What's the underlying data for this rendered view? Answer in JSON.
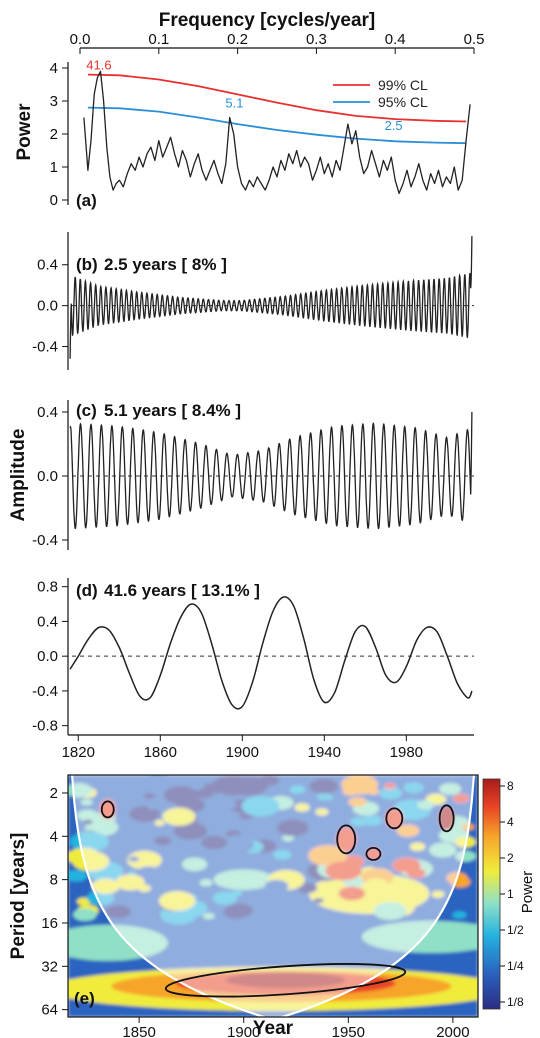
{
  "figure": {
    "top_axis_label": "Frequency [cycles/year]",
    "bottom_axis_label": "Year",
    "amplitude_label": "Amplitude"
  },
  "chart_data": [
    {
      "id": "a",
      "type": "line",
      "panel_label": "(a)",
      "ylabel": "Power",
      "xlabel": "Frequency [cycles/year]",
      "xlim": [
        0,
        0.5
      ],
      "ylim": [
        0,
        4.4
      ],
      "x_ticks": [
        "0.0",
        "0.1",
        "0.2",
        "0.3",
        "0.4",
        "0.5"
      ],
      "y_ticks": [
        "0",
        "1",
        "2",
        "3",
        "4"
      ],
      "legend_position": "top-right",
      "series": [
        {
          "name": "99% CL",
          "color": "#e8312f",
          "x": [
            0.01,
            0.05,
            0.1,
            0.15,
            0.2,
            0.25,
            0.3,
            0.35,
            0.4,
            0.45,
            0.49
          ],
          "y": [
            3.8,
            3.78,
            3.65,
            3.45,
            3.2,
            2.95,
            2.72,
            2.55,
            2.45,
            2.4,
            2.38
          ]
        },
        {
          "name": "95% CL",
          "color": "#2a8fd6",
          "x": [
            0.01,
            0.05,
            0.1,
            0.15,
            0.2,
            0.25,
            0.3,
            0.35,
            0.4,
            0.45,
            0.49
          ],
          "y": [
            2.8,
            2.78,
            2.68,
            2.5,
            2.3,
            2.12,
            1.98,
            1.86,
            1.78,
            1.74,
            1.72
          ]
        },
        {
          "name": "",
          "color": "#222222",
          "x": [
            0.005,
            0.01,
            0.014,
            0.018,
            0.022,
            0.026,
            0.03,
            0.034,
            0.038,
            0.042,
            0.046,
            0.05,
            0.055,
            0.06,
            0.065,
            0.07,
            0.075,
            0.08,
            0.085,
            0.09,
            0.095,
            0.1,
            0.105,
            0.11,
            0.115,
            0.12,
            0.125,
            0.13,
            0.135,
            0.14,
            0.145,
            0.15,
            0.155,
            0.16,
            0.165,
            0.17,
            0.175,
            0.18,
            0.185,
            0.19,
            0.195,
            0.2,
            0.205,
            0.21,
            0.215,
            0.22,
            0.225,
            0.23,
            0.235,
            0.24,
            0.245,
            0.25,
            0.255,
            0.26,
            0.265,
            0.27,
            0.275,
            0.28,
            0.285,
            0.29,
            0.295,
            0.3,
            0.305,
            0.31,
            0.315,
            0.32,
            0.325,
            0.33,
            0.335,
            0.34,
            0.345,
            0.35,
            0.355,
            0.36,
            0.365,
            0.37,
            0.375,
            0.38,
            0.385,
            0.39,
            0.395,
            0.4,
            0.405,
            0.41,
            0.415,
            0.42,
            0.425,
            0.43,
            0.435,
            0.44,
            0.445,
            0.45,
            0.455,
            0.46,
            0.465,
            0.47,
            0.475,
            0.48,
            0.485,
            0.49,
            0.495
          ],
          "y": [
            2.5,
            0.9,
            1.8,
            3.2,
            3.7,
            3.9,
            3.0,
            1.6,
            0.7,
            0.3,
            0.5,
            0.6,
            0.4,
            0.8,
            1.1,
            0.9,
            1.3,
            1.0,
            1.4,
            1.6,
            1.2,
            1.8,
            1.3,
            1.6,
            1.9,
            1.4,
            1.0,
            1.5,
            1.2,
            0.7,
            1.1,
            1.4,
            0.9,
            0.6,
            0.9,
            1.2,
            0.8,
            0.5,
            1.1,
            2.5,
            2.0,
            1.0,
            0.5,
            0.3,
            0.6,
            0.4,
            0.7,
            0.5,
            0.3,
            0.6,
            1.0,
            0.7,
            1.2,
            0.9,
            1.4,
            1.1,
            1.5,
            1.0,
            1.3,
            1.1,
            0.6,
            0.9,
            1.3,
            0.8,
            1.1,
            0.7,
            1.2,
            0.9,
            1.6,
            2.3,
            1.7,
            2.1,
            1.3,
            0.8,
            1.0,
            1.5,
            1.1,
            0.7,
            1.2,
            0.9,
            1.3,
            0.6,
            0.2,
            0.5,
            0.9,
            0.4,
            0.7,
            1.1,
            0.6,
            0.3,
            0.8,
            0.5,
            0.9,
            0.4,
            0.7,
            0.5,
            1.0,
            0.3,
            0.6,
            1.8,
            2.9
          ]
        }
      ],
      "annotations": [
        {
          "text": "41.6",
          "x": 0.024,
          "y": 3.95,
          "color": "#e8312f"
        },
        {
          "text": "5.1",
          "x": 0.196,
          "y": 2.8,
          "color": "#2a8fd6"
        },
        {
          "text": "2.5",
          "x": 0.398,
          "y": 2.12,
          "color": "#2a8fd6"
        }
      ],
      "legend": [
        "99% CL",
        "95% CL"
      ]
    },
    {
      "id": "b",
      "type": "line",
      "panel_label": "(b)",
      "title": "2.5 years [ 8% ]",
      "xlim": [
        1815,
        2013
      ],
      "ylim": [
        -0.6,
        0.72
      ],
      "y_ticks": [
        "0.4",
        "0.0",
        "-0.4"
      ],
      "period_years": 2.5,
      "zero_line": "dashed",
      "envelope_year": [
        1816,
        1830,
        1850,
        1870,
        1890,
        1900,
        1920,
        1940,
        1960,
        1980,
        2000,
        2012
      ],
      "envelope_amp": [
        0.3,
        0.19,
        0.13,
        0.08,
        0.05,
        0.05,
        0.09,
        0.15,
        0.2,
        0.24,
        0.27,
        0.32
      ],
      "end_values": {
        "start": -0.52,
        "end": 0.68
      }
    },
    {
      "id": "c",
      "type": "line",
      "panel_label": "(c)",
      "title": "5.1 years [ 8.4% ]",
      "xlim": [
        1815,
        2013
      ],
      "ylim": [
        -0.45,
        0.45
      ],
      "y_ticks": [
        "0.4",
        "0.0",
        "-0.4"
      ],
      "period_years": 5.1,
      "zero_line": "dashed",
      "envelope_year": [
        1816,
        1840,
        1860,
        1880,
        1895,
        1910,
        1925,
        1945,
        1965,
        1985,
        2000,
        2012
      ],
      "envelope_amp": [
        0.33,
        0.31,
        0.27,
        0.2,
        0.13,
        0.16,
        0.24,
        0.31,
        0.33,
        0.3,
        0.24,
        0.3
      ],
      "end_values": {
        "start": 0.3,
        "end": 0.4
      }
    },
    {
      "id": "d",
      "type": "line",
      "panel_label": "(d)",
      "title": "41.6 years [ 13.1% ]",
      "xlim": [
        1815,
        2013
      ],
      "ylim": [
        -0.85,
        0.9
      ],
      "y_ticks": [
        "0.8",
        "0.4",
        "0.0",
        "-0.4",
        "-0.8"
      ],
      "x_ticks": [
        "1820",
        "1860",
        "1900",
        "1940",
        "1980"
      ],
      "zero_line": "dashed",
      "x": [
        1816,
        1820,
        1825,
        1830,
        1835,
        1840,
        1845,
        1850,
        1855,
        1860,
        1865,
        1870,
        1875,
        1880,
        1885,
        1890,
        1895,
        1900,
        1905,
        1910,
        1915,
        1920,
        1925,
        1930,
        1935,
        1940,
        1945,
        1950,
        1955,
        1960,
        1965,
        1970,
        1975,
        1980,
        1985,
        1990,
        1995,
        2000,
        2005,
        2010,
        2012
      ],
      "y": [
        -0.15,
        0.0,
        0.2,
        0.33,
        0.3,
        0.1,
        -0.2,
        -0.46,
        -0.48,
        -0.22,
        0.15,
        0.45,
        0.6,
        0.5,
        0.15,
        -0.28,
        -0.56,
        -0.58,
        -0.3,
        0.15,
        0.52,
        0.68,
        0.58,
        0.2,
        -0.28,
        -0.53,
        -0.42,
        -0.05,
        0.28,
        0.34,
        0.1,
        -0.22,
        -0.3,
        -0.12,
        0.18,
        0.33,
        0.28,
        0.0,
        -0.32,
        -0.48,
        -0.4
      ]
    },
    {
      "id": "e",
      "type": "heatmap",
      "panel_label": "(e)",
      "xlabel": "Year",
      "ylabel": "Period [years]",
      "xlim": [
        1816,
        2012
      ],
      "ylim_period": [
        1.5,
        72
      ],
      "x_ticks": [
        "1850",
        "1900",
        "1950",
        "2000"
      ],
      "y_ticks": [
        "2",
        "4",
        "8",
        "16",
        "32",
        "64"
      ],
      "y_scale": "log2",
      "colorbar_label": "Power",
      "colorbar_ticks": [
        "8",
        "4",
        "2",
        "1",
        "1/2",
        "1/4",
        "1/8"
      ],
      "colormap": [
        "#2b2c83",
        "#2a64c0",
        "#24b3e0",
        "#8fe0c6",
        "#f0ec3a",
        "#f7a42b",
        "#e94425",
        "#a81b1b"
      ],
      "cone_of_influence": "white curve, shaded outside",
      "significant_regions": [
        {
          "year": 1835,
          "period": 2.6
        },
        {
          "year": 1949,
          "period": 4.2
        },
        {
          "year": 1962,
          "period": 5.3
        },
        {
          "year": 1972,
          "period": 3.0
        },
        {
          "year": 1997,
          "period": 3.0
        },
        {
          "year": 1920,
          "period": 40
        }
      ]
    }
  ]
}
